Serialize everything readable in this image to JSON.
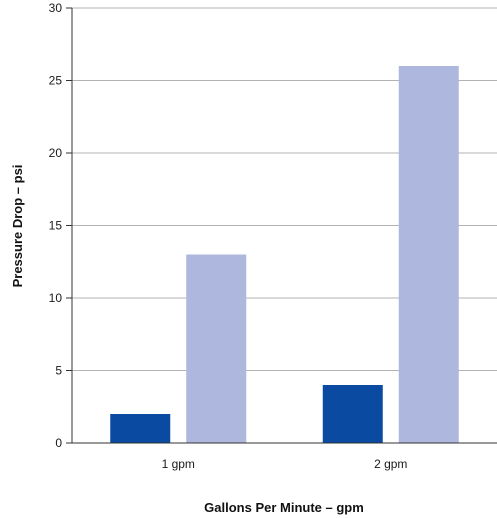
{
  "chart_data": {
    "type": "bar",
    "title": "",
    "xlabel": "Gallons Per Minute – gpm",
    "ylabel": "Pressure Drop – psi",
    "categories": [
      "1 gpm",
      "2 gpm"
    ],
    "series": [
      {
        "values": [
          2,
          4
        ],
        "color": "#0a4aa0"
      },
      {
        "values": [
          13,
          26
        ],
        "color": "#aeb7de"
      }
    ],
    "ylim": [
      0,
      30
    ],
    "yticks": [
      0,
      5,
      10,
      15,
      20,
      25,
      30
    ],
    "grid": true,
    "legend": "none"
  }
}
